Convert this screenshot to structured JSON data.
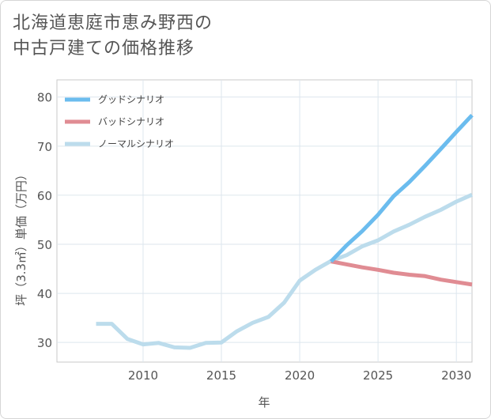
{
  "title_lines": [
    "北海道恵庭市恵み野西の",
    "中古戸建ての価格推移"
  ],
  "chart_data": {
    "type": "line",
    "title": "北海道恵庭市恵み野西の中古戸建ての価格推移",
    "xlabel": "年",
    "ylabel": "坪（3.3㎡）単価（万円）",
    "xlim": [
      2004.5,
      2031
    ],
    "ylim": [
      26,
      83.5
    ],
    "xticks": [
      2010,
      2015,
      2020,
      2025,
      2030
    ],
    "yticks": [
      30,
      40,
      50,
      60,
      70,
      80
    ],
    "grid": true,
    "legend_position": "top-left",
    "series": [
      {
        "name": "グッドシナリオ",
        "color": "#6bbcee",
        "x": [
          2022,
          2023,
          2024,
          2025,
          2026,
          2027,
          2028,
          2029,
          2030,
          2031
        ],
        "y": [
          46.5,
          49.8,
          52.7,
          56.0,
          59.8,
          62.7,
          66.0,
          69.4,
          72.9,
          76.3
        ]
      },
      {
        "name": "バッドシナリオ",
        "color": "#e08c93",
        "x": [
          2022,
          2023,
          2024,
          2025,
          2026,
          2027,
          2028,
          2029,
          2030,
          2031
        ],
        "y": [
          46.5,
          45.9,
          45.3,
          44.8,
          44.2,
          43.8,
          43.5,
          42.8,
          42.3,
          41.8
        ]
      },
      {
        "name": "ノーマルシナリオ",
        "color": "#bcdcec",
        "x": [
          2007,
          2008,
          2009,
          2010,
          2011,
          2012,
          2013,
          2014,
          2015,
          2016,
          2017,
          2018,
          2019,
          2020,
          2021,
          2022,
          2023,
          2024,
          2025,
          2026,
          2027,
          2028,
          2029,
          2030,
          2031
        ],
        "y": [
          33.8,
          33.8,
          30.7,
          29.6,
          29.9,
          29.0,
          28.9,
          29.9,
          30.0,
          32.3,
          34.0,
          35.2,
          38.1,
          42.6,
          44.8,
          46.6,
          47.8,
          49.6,
          50.8,
          52.6,
          54.0,
          55.6,
          57.0,
          58.7,
          60.1
        ]
      }
    ]
  }
}
